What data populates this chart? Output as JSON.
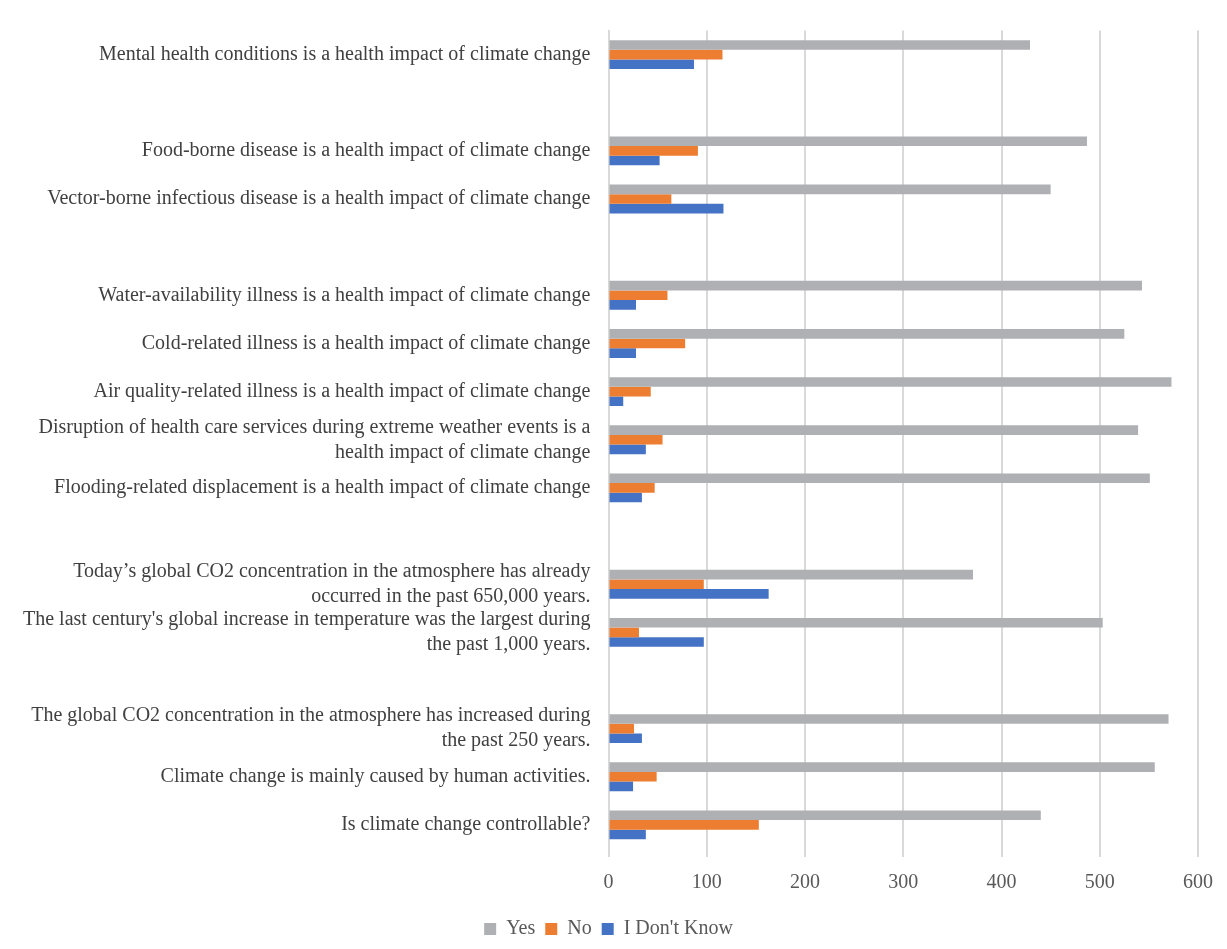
{
  "chart_data": {
    "type": "bar",
    "orientation": "horizontal",
    "categories": [
      "Mental health conditions is a health impact of climate change",
      null,
      "Food-borne disease is a health impact of climate change",
      "Vector-borne infectious disease is a health impact of climate change",
      null,
      "Water-availability illness is a health impact of climate change",
      "Cold-related illness is a health impact of climate change",
      "Air quality-related illness is a health impact of climate change",
      "Disruption of health care services during extreme weather events is a health impact of climate change",
      "Flooding-related displacement is a health impact of climate change",
      null,
      "Today’s global CO2 concentration in the atmosphere has already occurred in the past 650,000 years.",
      "The last century's global increase in temperature was the largest during the past 1,000 years.",
      null,
      "The global CO2 concentration in the atmosphere has increased during the past 250 years.",
      "Climate change is mainly caused by human activities.",
      "Is climate change controllable?"
    ],
    "series": [
      {
        "name": "Yes",
        "color": "#afb0b3",
        "values": [
          429,
          null,
          487,
          450,
          null,
          543,
          525,
          573,
          539,
          551,
          null,
          371,
          503,
          null,
          570,
          556,
          440
        ]
      },
      {
        "name": "No",
        "color": "#ed7d31",
        "values": [
          116,
          null,
          91,
          64,
          null,
          60,
          78,
          43,
          55,
          47,
          null,
          97,
          31,
          null,
          26,
          49,
          153
        ]
      },
      {
        "name": "I Don't Know",
        "color": "#4472c4",
        "values": [
          87,
          null,
          52,
          117,
          null,
          28,
          28,
          15,
          38,
          34,
          null,
          163,
          97,
          null,
          34,
          25,
          38
        ]
      }
    ],
    "xlim": [
      0,
      600
    ],
    "xticks": [
      0,
      100,
      200,
      300,
      400,
      500,
      600
    ],
    "grid": "x",
    "legend": "bottom"
  }
}
